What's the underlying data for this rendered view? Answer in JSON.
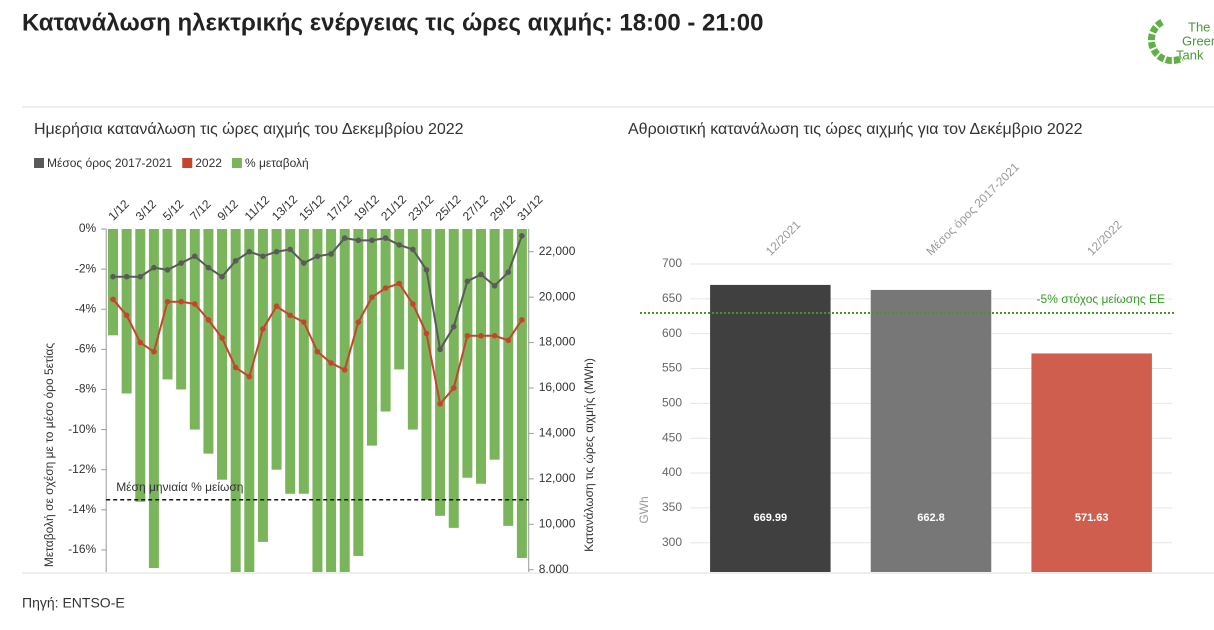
{
  "header": {
    "title": "Κατανάλωση ηλεκτρικής ενέργειας τις ώρες αιχμής: 18:00 - 21:00",
    "logo": [
      "The",
      "Green",
      "Tank"
    ]
  },
  "chart_data": [
    {
      "type": "combo",
      "title": "Ημερήσια κατανάλωση τις ώρες αιχμής του Δεκεμβρίου 2022",
      "ylabel": "Μεταβολή σε σχέση με το μέσο όρο 5ετίας",
      "y2label": "Κατανάλωση τις ώρες αιχμής (MWh)",
      "categories": [
        "1/12",
        null,
        "3/12",
        null,
        "5/12",
        null,
        "7/12",
        null,
        "9/12",
        null,
        "11/12",
        null,
        "13/12",
        null,
        "15/12",
        null,
        "17/12",
        null,
        "19/12",
        null,
        "21/12",
        null,
        "23/12",
        null,
        "25/12",
        null,
        "27/12",
        null,
        "29/12",
        null,
        "31/12"
      ],
      "ylim": [
        -17.1,
        0
      ],
      "yticks": [
        {
          "value": 0,
          "label": "0%"
        },
        {
          "value": -2,
          "label": "-2%"
        },
        {
          "value": -4,
          "label": "-4%"
        },
        {
          "value": -6,
          "label": "-6%"
        },
        {
          "value": -8,
          "label": "-8%"
        },
        {
          "value": -10,
          "label": "-10%"
        },
        {
          "value": -12,
          "label": "-12%"
        },
        {
          "value": -14,
          "label": "-14%"
        },
        {
          "value": -16,
          "label": "-16%"
        }
      ],
      "y2lim": [
        7900,
        23000
      ],
      "y2ticks": [
        {
          "value": 8000,
          "label": "8,000"
        },
        {
          "value": 10000,
          "label": "10,000"
        },
        {
          "value": 12000,
          "label": "12,000"
        },
        {
          "value": 14000,
          "label": "14,000"
        },
        {
          "value": 16000,
          "label": "16,000"
        },
        {
          "value": 18000,
          "label": "18,000"
        },
        {
          "value": 20000,
          "label": "20,000"
        },
        {
          "value": 22000,
          "label": "22,000"
        }
      ],
      "series": [
        {
          "name": "Μέσος όρος 2017-2021",
          "type": "line",
          "axis": "y2",
          "color": "#5a5a5a",
          "values": [
            20900,
            20900,
            20900,
            21300,
            21200,
            21500,
            21800,
            21300,
            20900,
            21600,
            22000,
            21800,
            22000,
            22100,
            21500,
            21800,
            21900,
            22600,
            22500,
            22500,
            22600,
            22300,
            22100,
            21200,
            17700,
            18700,
            20700,
            21000,
            20500,
            21100,
            22700
          ]
        },
        {
          "name": "2022",
          "type": "line",
          "axis": "y2",
          "color": "#c8432f",
          "values": [
            19900,
            19200,
            18000,
            17600,
            19800,
            19800,
            19700,
            19000,
            18200,
            16900,
            16500,
            18600,
            19600,
            19200,
            18900,
            17600,
            17100,
            16800,
            18900,
            20000,
            20400,
            20600,
            19700,
            18400,
            15300,
            16000,
            18300,
            18300,
            18300,
            18100,
            19000
          ]
        },
        {
          "name": "% μεταβολή",
          "type": "bar",
          "color": "#7ab55c",
          "values": [
            -5.3,
            -8.2,
            -13.6,
            -16.9,
            -7.5,
            -8.0,
            -10.0,
            -11.2,
            -12.5,
            -17.5,
            -17.5,
            -15.6,
            -12.0,
            -13.2,
            -13.2,
            -17.5,
            -17.5,
            -17.5,
            -16.3,
            -10.8,
            -9.1,
            -7.0,
            -10.0,
            -13.5,
            -14.3,
            -14.9,
            -12.4,
            -12.7,
            -11.5,
            -14.8,
            -16.4
          ]
        }
      ],
      "annotations": [
        {
          "text": "Μέση μηνιαία % μείωση",
          "value": -13.5,
          "color": "#111111"
        }
      ]
    },
    {
      "type": "bar",
      "title": "Αθροιστική κατανάλωση τις ώρες αιχμής για τον Δεκέμβριο 2022",
      "ylabel": "GWh",
      "categories": [
        "12/2021",
        "Μέσος όρος 2017-2021",
        "12/2022"
      ],
      "values": [
        669.99,
        662.8,
        571.63
      ],
      "colors": [
        "#404040",
        "#777777",
        "#d05e4e"
      ],
      "ylim": [
        258,
        700
      ],
      "yticks": [
        300,
        350,
        400,
        450,
        500,
        550,
        600,
        650,
        700
      ],
      "grid": true,
      "annotations": [
        {
          "text": "-5% στόχος μείωσης ΕΕ",
          "value": 629.66,
          "color": "#3a9a2a"
        }
      ]
    }
  ],
  "footer": {
    "source": "Πηγή: ENTSO-E"
  }
}
